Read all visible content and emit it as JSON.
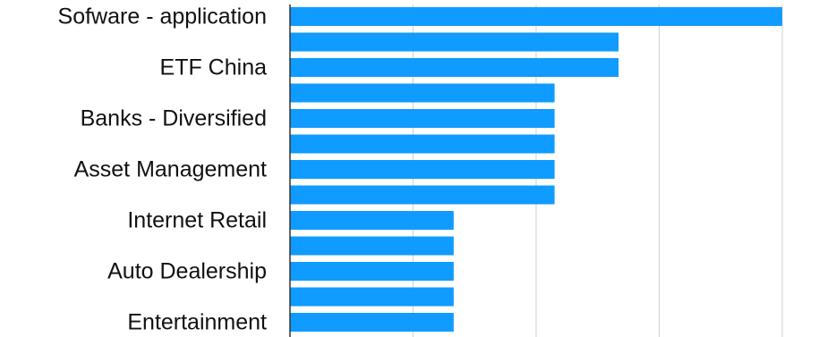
{
  "chart_data": {
    "type": "bar",
    "orientation": "horizontal",
    "categories": [
      "Sofware - application",
      "",
      "ETF China",
      "",
      "Banks - Diversified",
      "",
      "Asset Management",
      "",
      "Internet Retail",
      "",
      "Auto Dealership",
      "",
      "Entertainment"
    ],
    "values": [
      4,
      2.67,
      2.67,
      2.15,
      2.15,
      2.15,
      2.15,
      2.15,
      1.33,
      1.33,
      1.33,
      1.33,
      1.33
    ],
    "xlim": [
      0,
      4
    ],
    "gridlines_x": [
      0,
      1,
      2,
      3,
      4
    ],
    "grid": true,
    "legend": "none",
    "title": "",
    "xlabel": "",
    "ylabel": "",
    "colors": {
      "bar": "#0f9bff",
      "grid": "#d0d0d0",
      "axis": "#333333"
    }
  }
}
